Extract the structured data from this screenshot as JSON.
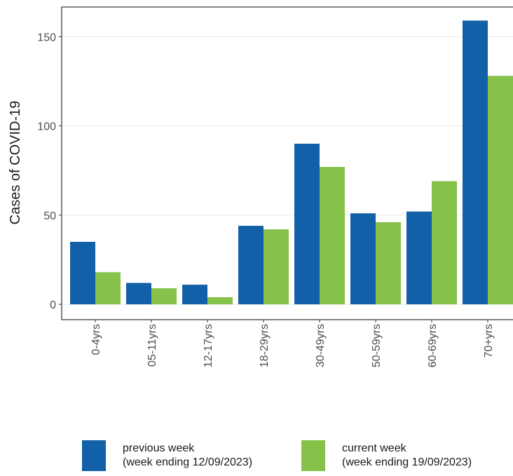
{
  "chart_data": {
    "type": "bar",
    "y_label": "Cases of COVID-19",
    "categories": [
      "0-4yrs",
      "05-11yrs",
      "12-17yrs",
      "18-29yrs",
      "30-49yrs",
      "50-59yrs",
      "60-69yrs",
      "70+yrs"
    ],
    "series": [
      {
        "name": "previous week\n(week ending 12/09/2023)",
        "color": "#1160a8",
        "values": [
          35,
          12,
          11,
          44,
          90,
          51,
          52,
          159
        ]
      },
      {
        "name": "current week\n(week ending 19/09/2023)",
        "color": "#86c24a",
        "values": [
          18,
          9,
          4,
          42,
          77,
          46,
          69,
          128
        ]
      }
    ],
    "ylim": [
      -8.6,
      166.6
    ],
    "yticks": [
      0,
      50,
      100,
      150
    ],
    "grid": true,
    "legend": "bottom"
  }
}
